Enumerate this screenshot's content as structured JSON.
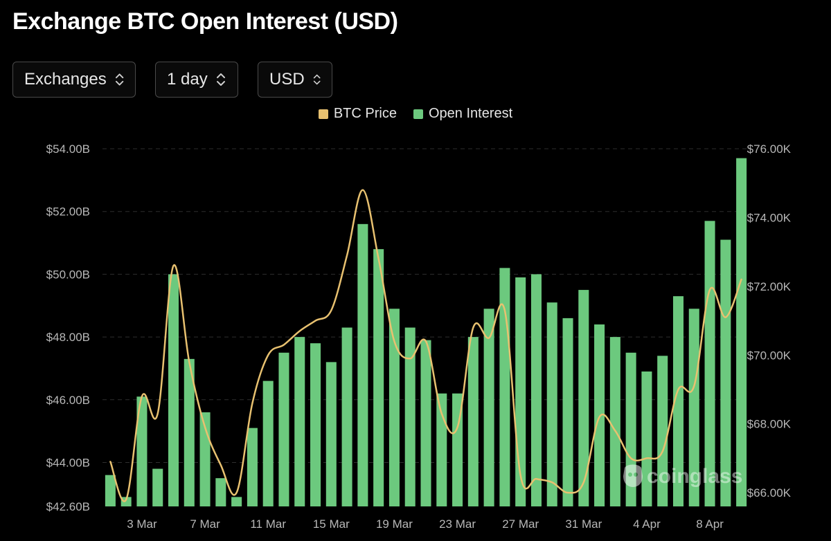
{
  "header": {
    "title": "Exchange BTC Open Interest (USD)"
  },
  "controls": {
    "exchanges": "Exchanges",
    "interval": "1 day",
    "currency": "USD",
    "chevron_icon": "chevron-up-down-icon"
  },
  "watermark": {
    "text": "coinglass",
    "icon": "coinglass-logo-icon"
  },
  "colors": {
    "background": "#000000",
    "open_interest": "#6cc97e",
    "btc_price": "#e8c170",
    "grid": "#2e2e2e"
  },
  "chart_data": {
    "type": "bar",
    "legend": [
      "BTC Price",
      "Open Interest"
    ],
    "legend_placement": "top-center",
    "grid": true,
    "x": [
      "1 Mar",
      "2 Mar",
      "3 Mar",
      "4 Mar",
      "5 Mar",
      "6 Mar",
      "7 Mar",
      "8 Mar",
      "9 Mar",
      "10 Mar",
      "11 Mar",
      "12 Mar",
      "13 Mar",
      "14 Mar",
      "15 Mar",
      "16 Mar",
      "17 Mar",
      "18 Mar",
      "19 Mar",
      "20 Mar",
      "21 Mar",
      "22 Mar",
      "23 Mar",
      "24 Mar",
      "25 Mar",
      "26 Mar",
      "27 Mar",
      "28 Mar",
      "29 Mar",
      "30 Mar",
      "31 Mar",
      "1 Apr",
      "2 Apr",
      "3 Apr",
      "4 Apr",
      "5 Apr",
      "6 Apr",
      "7 Apr",
      "8 Apr",
      "9 Apr",
      "10 Apr"
    ],
    "x_tick_labels": [
      "3 Mar",
      "7 Mar",
      "11 Mar",
      "15 Mar",
      "19 Mar",
      "23 Mar",
      "27 Mar",
      "31 Mar",
      "4 Apr",
      "8 Apr"
    ],
    "series": [
      {
        "name": "Open Interest",
        "type": "bar",
        "axis": "left",
        "values": [
          43.6,
          42.9,
          46.1,
          43.8,
          50.0,
          47.3,
          45.6,
          43.5,
          42.9,
          45.1,
          46.6,
          47.5,
          48.0,
          47.8,
          47.2,
          48.3,
          51.6,
          50.8,
          48.9,
          48.3,
          47.9,
          46.2,
          46.2,
          48.0,
          48.9,
          50.2,
          49.9,
          50.0,
          49.1,
          48.6,
          49.5,
          48.4,
          48.0,
          47.5,
          46.9,
          47.4,
          49.3,
          48.9,
          51.7,
          51.1,
          53.7
        ]
      },
      {
        "name": "BTC Price",
        "type": "line",
        "axis": "right",
        "values": [
          66.9,
          65.8,
          68.8,
          68.3,
          72.6,
          69.8,
          67.9,
          66.8,
          66.0,
          68.6,
          70.0,
          70.3,
          70.7,
          71.0,
          71.3,
          72.9,
          74.8,
          72.8,
          70.4,
          69.9,
          70.4,
          68.3,
          67.9,
          70.8,
          70.5,
          71.3,
          66.5,
          66.4,
          66.3,
          66.0,
          66.3,
          68.2,
          67.8,
          67.0,
          67.0,
          67.2,
          69.0,
          69.1,
          71.9,
          71.1,
          72.2
        ]
      }
    ],
    "y_left": {
      "ticks": [
        "$42.60B",
        "$44.00B",
        "$46.00B",
        "$48.00B",
        "$50.00B",
        "$52.00B",
        "$54.00B"
      ],
      "tick_values": [
        42.6,
        44,
        46,
        48,
        50,
        52,
        54
      ],
      "range": [
        42.6,
        54
      ],
      "unit": "B USD"
    },
    "y_right": {
      "ticks": [
        "$66.00K",
        "$68.00K",
        "$70.00K",
        "$72.00K",
        "$74.00K",
        "$76.00K"
      ],
      "tick_values": [
        66,
        68,
        70,
        72,
        74,
        76
      ],
      "range": [
        65.6,
        76
      ],
      "unit": "K USD"
    }
  }
}
